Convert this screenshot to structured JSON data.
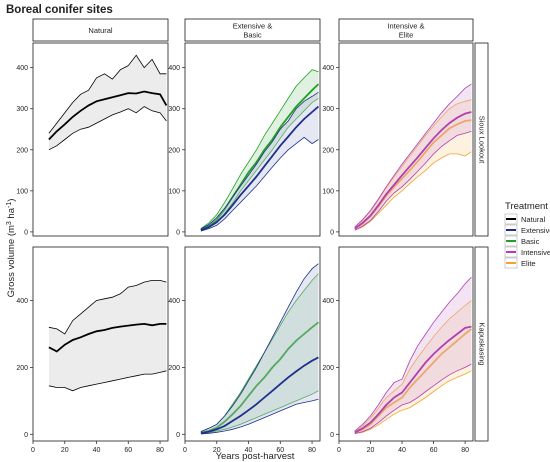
{
  "chart_data": {
    "type": "line",
    "title": "Boreal conifer sites",
    "xlabel": "Years post-harvest",
    "ylabel_main": "Gross volume (m",
    "ylabel_sup1": "3",
    "ylabel_mid": " ha",
    "ylabel_sup2": "-1",
    "ylabel_end": ")",
    "xlim": [
      0,
      85
    ],
    "xticks": [
      0,
      20,
      40,
      60,
      80
    ],
    "columns": [
      "Natural",
      "Extensive &\nBasic",
      "Intensive &\nElite"
    ],
    "rows": [
      {
        "label": "Sioux Lookout",
        "ylim": [
          -10,
          460
        ],
        "yticks": [
          0,
          100,
          200,
          300,
          400
        ]
      },
      {
        "label": "Kapuskasing",
        "ylim": [
          -20,
          560
        ],
        "yticks": [
          0,
          200,
          400
        ]
      }
    ],
    "legend": {
      "title": "Treatment",
      "position": "right",
      "entries": [
        {
          "name": "Natural",
          "color": "#000000"
        },
        {
          "name": "Extensive",
          "color": "#1f2f8c"
        },
        {
          "name": "Basic",
          "color": "#21a021"
        },
        {
          "name": "Intensive",
          "color": "#b03fb0"
        },
        {
          "name": "Elite",
          "color": "#f3a233"
        }
      ]
    },
    "series_colors": {
      "Natural": "#000000",
      "Extensive": "#1f2f8c",
      "Basic": "#21a021",
      "Intensive": "#b03fb0",
      "Elite": "#f3a233"
    },
    "band_fill": {
      "Natural": "#dcdcdc",
      "Extensive": "#b4bbd9",
      "Basic": "#a9d8a9",
      "Intensive": "#dcb1dc",
      "Elite": "#f9d6a3"
    },
    "panels": [
      {
        "row": 0,
        "col": 0,
        "series": [
          {
            "name": "Natural",
            "x": [
              10,
              15,
              20,
              25,
              30,
              35,
              40,
              45,
              50,
              55,
              60,
              65,
              70,
              75,
              80,
              84
            ],
            "mid": [
              225,
              245,
              262,
              280,
              295,
              308,
              318,
              323,
              328,
              333,
              338,
              337,
              342,
              338,
              335,
              308
            ],
            "lo": [
              200,
              210,
              225,
              240,
              250,
              255,
              265,
              275,
              285,
              292,
              300,
              290,
              305,
              295,
              290,
              270
            ],
            "hi": [
              240,
              265,
              290,
              315,
              335,
              345,
              375,
              385,
              372,
              395,
              405,
              430,
              400,
              420,
              385,
              385
            ]
          }
        ]
      },
      {
        "row": 0,
        "col": 1,
        "series": [
          {
            "name": "Basic",
            "x": [
              10,
              15,
              20,
              25,
              30,
              35,
              40,
              45,
              50,
              55,
              60,
              65,
              70,
              75,
              80,
              84
            ],
            "mid": [
              5,
              15,
              30,
              55,
              85,
              115,
              145,
              170,
              200,
              225,
              255,
              280,
              305,
              325,
              345,
              360
            ],
            "lo": [
              3,
              10,
              22,
              45,
              70,
              100,
              125,
              150,
              175,
              200,
              228,
              255,
              275,
              295,
              315,
              325
            ],
            "hi": [
              8,
              22,
              42,
              72,
              105,
              140,
              170,
              200,
              235,
              265,
              295,
              325,
              355,
              375,
              395,
              390
            ]
          },
          {
            "name": "Extensive",
            "x": [
              10,
              15,
              20,
              25,
              30,
              35,
              40,
              45,
              50,
              55,
              60,
              65,
              70,
              75,
              80,
              84
            ],
            "mid": [
              4,
              12,
              24,
              42,
              65,
              90,
              112,
              135,
              160,
              185,
              210,
              232,
              255,
              275,
              292,
              305
            ],
            "lo": [
              2,
              8,
              16,
              32,
              52,
              72,
              92,
              112,
              135,
              158,
              180,
              200,
              215,
              230,
              215,
              225
            ],
            "hi": [
              7,
              18,
              35,
              58,
              85,
              112,
              138,
              165,
              195,
              220,
              250,
              270,
              300,
              318,
              330,
              340
            ]
          }
        ]
      },
      {
        "row": 0,
        "col": 2,
        "series": [
          {
            "name": "Elite",
            "x": [
              10,
              15,
              20,
              25,
              30,
              35,
              40,
              45,
              50,
              55,
              60,
              65,
              70,
              75,
              80,
              84
            ],
            "mid": [
              8,
              20,
              38,
              62,
              88,
              110,
              130,
              150,
              172,
              195,
              218,
              235,
              252,
              262,
              270,
              272
            ],
            "lo": [
              4,
              12,
              26,
              45,
              65,
              85,
              100,
              118,
              135,
              150,
              168,
              180,
              190,
              190,
              185,
              195
            ],
            "hi": [
              12,
              28,
              50,
              78,
              108,
              135,
              160,
              185,
              210,
              235,
              258,
              280,
              300,
              312,
              318,
              322
            ]
          },
          {
            "name": "Intensive",
            "x": [
              10,
              15,
              20,
              25,
              30,
              35,
              40,
              45,
              50,
              55,
              60,
              65,
              70,
              75,
              80,
              84
            ],
            "mid": [
              8,
              22,
              40,
              65,
              92,
              115,
              138,
              160,
              182,
              205,
              228,
              248,
              265,
              278,
              288,
              292
            ],
            "lo": [
              4,
              14,
              28,
              50,
              75,
              95,
              110,
              128,
              148,
              168,
              190,
              208,
              222,
              235,
              240,
              245
            ],
            "hi": [
              12,
              30,
              52,
              80,
              110,
              138,
              165,
              190,
              215,
              240,
              265,
              290,
              312,
              330,
              350,
              360
            ]
          }
        ]
      },
      {
        "row": 1,
        "col": 0,
        "series": [
          {
            "name": "Natural",
            "x": [
              10,
              15,
              20,
              25,
              30,
              35,
              40,
              45,
              50,
              55,
              60,
              65,
              70,
              75,
              80,
              84
            ],
            "mid": [
              260,
              248,
              268,
              282,
              290,
              300,
              308,
              312,
              318,
              322,
              325,
              328,
              330,
              326,
              330,
              330
            ],
            "lo": [
              145,
              140,
              140,
              130,
              140,
              145,
              150,
              155,
              160,
              165,
              170,
              175,
              180,
              180,
              185,
              190
            ],
            "hi": [
              320,
              315,
              300,
              340,
              360,
              380,
              400,
              405,
              410,
              420,
              440,
              445,
              455,
              460,
              460,
              455
            ]
          }
        ]
      },
      {
        "row": 1,
        "col": 1,
        "series": [
          {
            "name": "Basic",
            "x": [
              10,
              15,
              20,
              25,
              30,
              35,
              40,
              45,
              50,
              55,
              60,
              65,
              70,
              75,
              80,
              84
            ],
            "mid": [
              5,
              10,
              20,
              38,
              60,
              85,
              115,
              145,
              170,
              200,
              225,
              255,
              280,
              300,
              320,
              335
            ],
            "lo": [
              2,
              5,
              10,
              15,
              22,
              30,
              40,
              50,
              60,
              70,
              80,
              90,
              100,
              110,
              120,
              130
            ],
            "hi": [
              8,
              18,
              30,
              55,
              90,
              125,
              165,
              205,
              245,
              285,
              325,
              365,
              400,
              430,
              460,
              480
            ]
          },
          {
            "name": "Extensive",
            "x": [
              10,
              15,
              20,
              25,
              30,
              35,
              40,
              45,
              50,
              55,
              60,
              65,
              70,
              75,
              80,
              84
            ],
            "mid": [
              3,
              8,
              15,
              25,
              40,
              55,
              72,
              90,
              110,
              130,
              150,
              170,
              188,
              205,
              220,
              230
            ],
            "lo": [
              1,
              3,
              6,
              10,
              15,
              22,
              30,
              40,
              50,
              60,
              70,
              80,
              90,
              95,
              100,
              105
            ],
            "hi": [
              8,
              18,
              30,
              55,
              85,
              120,
              160,
              200,
              245,
              290,
              335,
              380,
              425,
              465,
              495,
              510
            ]
          }
        ]
      },
      {
        "row": 1,
        "col": 2,
        "series": [
          {
            "name": "Elite",
            "x": [
              10,
              15,
              20,
              25,
              30,
              35,
              40,
              45,
              50,
              55,
              60,
              65,
              70,
              75,
              80,
              84
            ],
            "mid": [
              5,
              15,
              30,
              55,
              80,
              95,
              110,
              140,
              165,
              190,
              215,
              240,
              260,
              280,
              300,
              315
            ],
            "lo": [
              2,
              6,
              15,
              28,
              45,
              60,
              72,
              80,
              95,
              110,
              128,
              145,
              160,
              170,
              180,
              190
            ],
            "hi": [
              8,
              25,
              48,
              78,
              110,
              130,
              150,
              195,
              230,
              262,
              292,
              320,
              345,
              365,
              385,
              400
            ]
          },
          {
            "name": "Intensive",
            "x": [
              10,
              15,
              20,
              25,
              30,
              35,
              40,
              45,
              50,
              55,
              60,
              65,
              70,
              75,
              80,
              84
            ],
            "mid": [
              5,
              18,
              35,
              60,
              88,
              110,
              125,
              155,
              185,
              215,
              240,
              262,
              282,
              300,
              318,
              322
            ],
            "lo": [
              2,
              8,
              18,
              35,
              55,
              72,
              88,
              95,
              110,
              128,
              145,
              162,
              178,
              190,
              200,
              210
            ],
            "hi": [
              10,
              30,
              55,
              88,
              125,
              155,
              165,
              220,
              265,
              300,
              335,
              365,
              395,
              420,
              450,
              470
            ]
          }
        ]
      }
    ]
  }
}
